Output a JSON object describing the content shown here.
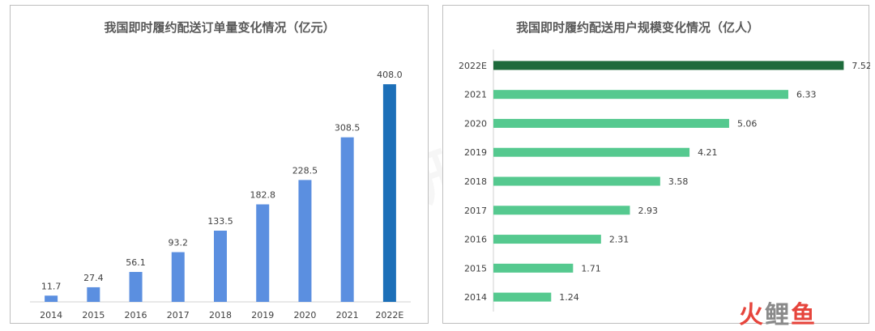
{
  "chart_data": [
    {
      "type": "bar",
      "title": "我国即时履约配送订单量变化情况（亿元）",
      "categories": [
        "2014",
        "2015",
        "2016",
        "2017",
        "2018",
        "2019",
        "2020",
        "2021",
        "2022E"
      ],
      "values": [
        11.7,
        27.4,
        56.1,
        93.2,
        133.5,
        182.8,
        228.5,
        308.5,
        408.0
      ],
      "value_labels": [
        "11.7",
        "27.4",
        "56.1",
        "93.2",
        "133.5",
        "182.8",
        "228.5",
        "308.5",
        "408.0"
      ],
      "ylim": [
        0,
        440
      ],
      "colors": {
        "bar": "#5b8fe0",
        "highlight": "#1c6fb8"
      },
      "highlight_index": 8,
      "grid": false
    },
    {
      "type": "bar",
      "orientation": "horizontal",
      "title": "我国即时履约配送用户规模变化情况（亿人）",
      "categories": [
        "2022E",
        "2021",
        "2020",
        "2019",
        "2018",
        "2017",
        "2016",
        "2015",
        "2014"
      ],
      "values": [
        7.52,
        6.33,
        5.06,
        4.21,
        3.58,
        2.93,
        2.31,
        1.71,
        1.24
      ],
      "value_labels": [
        "7.52",
        "6.33",
        "5.06",
        "4.21",
        "3.58",
        "2.93",
        "2.31",
        "1.71",
        "1.24"
      ],
      "xlim": [
        0,
        8
      ],
      "colors": {
        "bar": "#55c98f",
        "highlight": "#1e6b3c"
      },
      "highlight_index": 0,
      "grid": false
    }
  ],
  "watermark": "金杜网研究院",
  "logo": {
    "c1": "火",
    "c2": "鲤",
    "c3": "鱼"
  }
}
